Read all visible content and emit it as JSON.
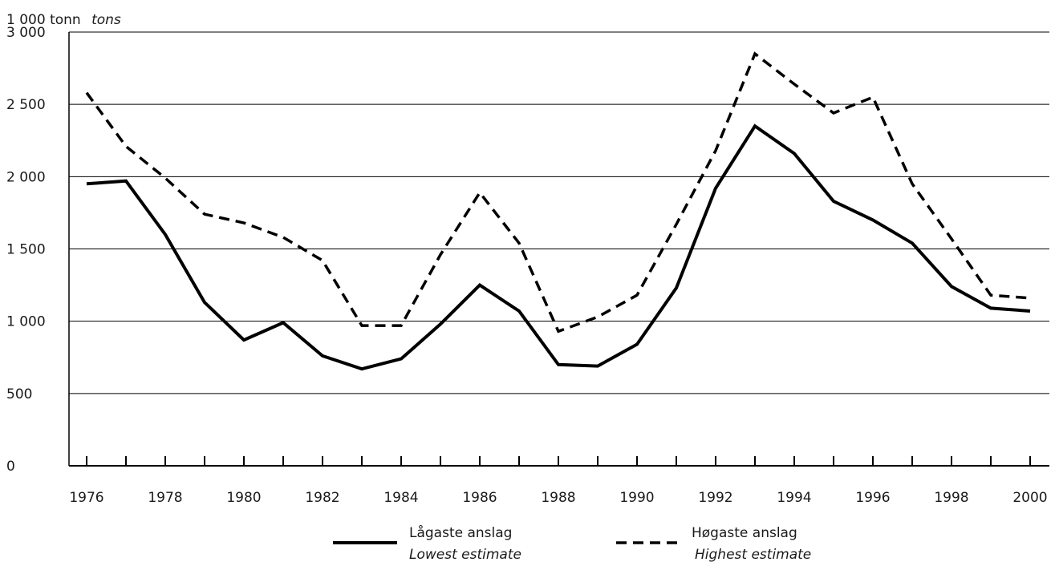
{
  "chart_data": {
    "type": "line",
    "ylabel": "1 000 tonn",
    "ylabel_secondary": "tons",
    "ylim": [
      0,
      3000
    ],
    "xlim": [
      1976,
      2000
    ],
    "y_ticks": [
      0,
      500,
      1000,
      1500,
      2000,
      2500,
      3000
    ],
    "y_tick_labels": [
      "0",
      "500",
      "1 000",
      "1 500",
      "2 000",
      "2 500",
      "3 000"
    ],
    "x_tick_labels": [
      "1976",
      "1978",
      "1980",
      "1982",
      "1984",
      "1986",
      "1988",
      "1990",
      "1992",
      "1994",
      "1996",
      "1998",
      "2000"
    ],
    "x": [
      1976,
      1977,
      1978,
      1979,
      1980,
      1981,
      1982,
      1983,
      1984,
      1985,
      1986,
      1987,
      1988,
      1989,
      1990,
      1991,
      1992,
      1993,
      1994,
      1995,
      1996,
      1997,
      1998,
      1999,
      2000
    ],
    "grid": "horizontal",
    "legend_position": "bottom",
    "series": [
      {
        "name": "Lågaste anslag",
        "name_secondary": "Lowest estimate",
        "style": "solid",
        "color": "#000000",
        "values": [
          1950,
          1970,
          1600,
          1130,
          870,
          990,
          760,
          670,
          740,
          980,
          1250,
          1070,
          700,
          690,
          840,
          1230,
          1920,
          2350,
          2160,
          1830,
          1700,
          1540,
          1240,
          1090,
          1070
        ]
      },
      {
        "name": "Høgaste anslag",
        "name_secondary": "Highest estimate",
        "style": "dashed",
        "color": "#000000",
        "values": [
          2580,
          2210,
          1990,
          1740,
          1680,
          1580,
          1420,
          970,
          970,
          1460,
          1890,
          1540,
          930,
          1030,
          1180,
          1670,
          2180,
          2850,
          2640,
          2440,
          2550,
          1950,
          1570,
          1180,
          1160
        ]
      }
    ]
  }
}
